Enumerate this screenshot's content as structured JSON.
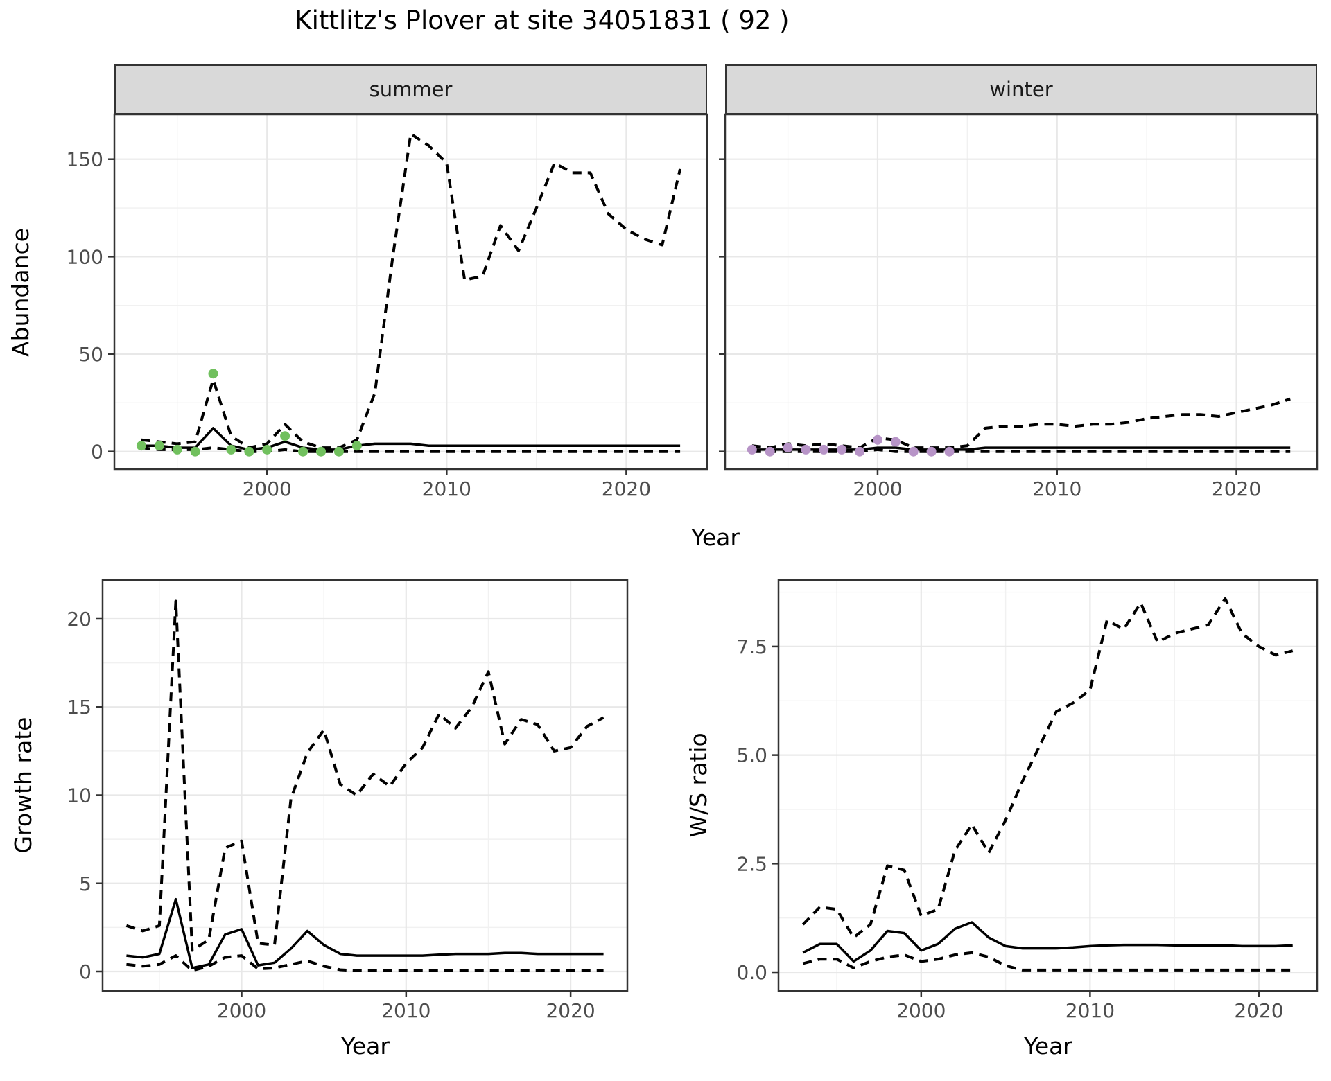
{
  "title": "Kittlitz's Plover at site 34051831 ( 92 )",
  "facets": [
    "summer",
    "winter"
  ],
  "axis_titles": {
    "abundance": "Abundance",
    "year": "Year",
    "growth_rate": "Growth rate",
    "ws_ratio": "W/S ratio"
  },
  "colors": {
    "background": "#ffffff",
    "strip_bg": "#d9d9d9",
    "panel_border": "#333333",
    "grid_major": "#e8e8e8",
    "grid_minor": "#f1f1f1",
    "tick_text": "#4d4d4d",
    "line": "#000000",
    "summer_points": "#71c05e",
    "winter_points": "#b794c7"
  },
  "chart_data": [
    {
      "id": "abundance_summer",
      "type": "line",
      "facet": "summer",
      "xlabel": "Year",
      "ylabel": "Abundance",
      "xlim": [
        1991.5,
        2024.5
      ],
      "ylim": [
        -9,
        173
      ],
      "xticks": [
        2000,
        2010,
        2020
      ],
      "xtick_labels": [
        "2000",
        "2010",
        "2020"
      ],
      "x_minor": [
        1995,
        2005,
        2015
      ],
      "yticks": [
        0,
        50,
        100,
        150
      ],
      "ytick_labels": [
        "0",
        "50",
        "100",
        "150"
      ],
      "y_minor": [
        25,
        75,
        125
      ],
      "grid": true,
      "legend": "none",
      "series": [
        {
          "name": "upper_95ci",
          "style": "dashed",
          "x": [
            1993,
            1994,
            1995,
            1996,
            1997,
            1998,
            1999,
            2000,
            2001,
            2002,
            2003,
            2004,
            2005,
            2006,
            2007,
            2008,
            2009,
            2010,
            2011,
            2012,
            2013,
            2014,
            2015,
            2016,
            2017,
            2018,
            2019,
            2020,
            2021,
            2022,
            2023
          ],
          "y": [
            6,
            5,
            4,
            5,
            37,
            8,
            2,
            4,
            14,
            5,
            2,
            2,
            6,
            30,
            100,
            163,
            157,
            148,
            88,
            90,
            116,
            103,
            125,
            148,
            143,
            143,
            122,
            114,
            109,
            106,
            145
          ]
        },
        {
          "name": "median",
          "style": "solid",
          "x": [
            1993,
            1994,
            1995,
            1996,
            1997,
            1998,
            1999,
            2000,
            2001,
            2002,
            2003,
            2004,
            2005,
            2006,
            2007,
            2008,
            2009,
            2010,
            2011,
            2012,
            2013,
            2014,
            2015,
            2016,
            2017,
            2018,
            2019,
            2020,
            2021,
            2022,
            2023
          ],
          "y": [
            3,
            3,
            2,
            2,
            12,
            3,
            1,
            2,
            5,
            2,
            1,
            1,
            3,
            4,
            4,
            4,
            3,
            3,
            3,
            3,
            3,
            3,
            3,
            3,
            3,
            3,
            3,
            3,
            3,
            3,
            3
          ]
        },
        {
          "name": "lower_95ci",
          "style": "dashed",
          "x": [
            1993,
            1994,
            1995,
            1996,
            1997,
            1998,
            1999,
            2000,
            2001,
            2002,
            2003,
            2004,
            2005,
            2006,
            2007,
            2008,
            2009,
            2010,
            2011,
            2012,
            2013,
            2014,
            2015,
            2016,
            2017,
            2018,
            2019,
            2020,
            2021,
            2022,
            2023
          ],
          "y": [
            2,
            1,
            1,
            1,
            2,
            1,
            0,
            0,
            1,
            0,
            0,
            0,
            0,
            0,
            0,
            0,
            0,
            0,
            0,
            0,
            0,
            0,
            0,
            0,
            0,
            0,
            0,
            0,
            0,
            0,
            0
          ]
        },
        {
          "name": "observed_counts",
          "style": "points",
          "color_key": "summer_points",
          "x": [
            1993,
            1994,
            1995,
            1996,
            1997,
            1998,
            1999,
            2000,
            2001,
            2002,
            2003,
            2004,
            2005
          ],
          "y": [
            3,
            3,
            1,
            0,
            40,
            1,
            0,
            1,
            8,
            0,
            0,
            0,
            3
          ]
        }
      ]
    },
    {
      "id": "abundance_winter",
      "type": "line",
      "facet": "winter",
      "xlabel": "Year",
      "ylabel": "Abundance",
      "xlim": [
        1991.5,
        2024.5
      ],
      "ylim": [
        -9,
        173
      ],
      "xticks": [
        2000,
        2010,
        2020
      ],
      "xtick_labels": [
        "2000",
        "2010",
        "2020"
      ],
      "x_minor": [
        1995,
        2005,
        2015
      ],
      "yticks": [
        0,
        50,
        100,
        150
      ],
      "ytick_labels": [
        "0",
        "50",
        "100",
        "150"
      ],
      "y_minor": [
        25,
        75,
        125
      ],
      "grid": true,
      "legend": "none",
      "series": [
        {
          "name": "upper_95ci",
          "style": "dashed",
          "x": [
            1993,
            1994,
            1995,
            1996,
            1997,
            1998,
            1999,
            2000,
            2001,
            2002,
            2003,
            2004,
            2005,
            2006,
            2007,
            2008,
            2009,
            2010,
            2011,
            2012,
            2013,
            2014,
            2015,
            2016,
            2017,
            2018,
            2019,
            2020,
            2021,
            2022,
            2023
          ],
          "y": [
            3,
            2,
            4,
            3,
            4,
            3,
            2,
            7,
            6,
            2,
            2,
            2,
            3,
            12,
            13,
            13,
            14,
            14,
            13,
            14,
            14,
            15,
            17,
            18,
            19,
            19,
            18,
            20,
            22,
            24,
            27
          ]
        },
        {
          "name": "median",
          "style": "solid",
          "x": [
            1993,
            1994,
            1995,
            1996,
            1997,
            1998,
            1999,
            2000,
            2001,
            2002,
            2003,
            2004,
            2005,
            2006,
            2007,
            2008,
            2009,
            2010,
            2011,
            2012,
            2013,
            2014,
            2015,
            2016,
            2017,
            2018,
            2019,
            2020,
            2021,
            2022,
            2023
          ],
          "y": [
            1,
            1,
            1,
            1,
            1,
            1,
            1,
            2,
            2,
            1,
            1,
            1,
            1,
            2,
            2,
            2,
            2,
            2,
            2,
            2,
            2,
            2,
            2,
            2,
            2,
            2,
            2,
            2,
            2,
            2,
            2
          ]
        },
        {
          "name": "lower_95ci",
          "style": "dashed",
          "x": [
            1993,
            1994,
            1995,
            1996,
            1997,
            1998,
            1999,
            2000,
            2001,
            2002,
            2003,
            2004,
            2005,
            2006,
            2007,
            2008,
            2009,
            2010,
            2011,
            2012,
            2013,
            2014,
            2015,
            2016,
            2017,
            2018,
            2019,
            2020,
            2021,
            2022,
            2023
          ],
          "y": [
            0,
            0,
            0,
            0,
            0,
            0,
            0,
            1,
            0,
            0,
            0,
            0,
            0,
            0,
            0,
            0,
            0,
            0,
            0,
            0,
            0,
            0,
            0,
            0,
            0,
            0,
            0,
            0,
            0,
            0,
            0
          ]
        },
        {
          "name": "observed_counts",
          "style": "points",
          "color_key": "winter_points",
          "x": [
            1993,
            1994,
            1995,
            1996,
            1997,
            1998,
            1999,
            2000,
            2001,
            2002,
            2003,
            2004
          ],
          "y": [
            1,
            0,
            2,
            1,
            1,
            1,
            0,
            6,
            5,
            0,
            0,
            0
          ]
        }
      ]
    },
    {
      "id": "growth_rate",
      "type": "line",
      "xlabel": "Year",
      "ylabel": "Growth rate",
      "xlim": [
        1991.55,
        2023.45
      ],
      "ylim": [
        -1.1,
        22.2
      ],
      "xticks": [
        2000,
        2010,
        2020
      ],
      "xtick_labels": [
        "2000",
        "2010",
        "2020"
      ],
      "x_minor": [
        1995,
        2005,
        2015
      ],
      "yticks": [
        0,
        5,
        10,
        15,
        20
      ],
      "ytick_labels": [
        "0",
        "5",
        "10",
        "15",
        "20"
      ],
      "y_minor": [
        2.5,
        7.5,
        12.5,
        17.5
      ],
      "grid": true,
      "legend": "none",
      "series": [
        {
          "name": "upper_95ci",
          "style": "dashed",
          "x": [
            1993,
            1994,
            1995,
            1996,
            1997,
            1998,
            1999,
            2000,
            2001,
            2002,
            2003,
            2004,
            2005,
            2006,
            2007,
            2008,
            2009,
            2010,
            2011,
            2012,
            2013,
            2014,
            2015,
            2016,
            2017,
            2018,
            2019,
            2020,
            2021,
            2022
          ],
          "y": [
            2.6,
            2.3,
            2.6,
            21,
            1.2,
            1.8,
            7.0,
            7.4,
            1.6,
            1.5,
            9.8,
            12.4,
            13.7,
            10.6,
            10.0,
            11.2,
            10.5,
            11.8,
            12.7,
            14.6,
            13.8,
            15.0,
            17.0,
            12.9,
            14.3,
            14.0,
            12.5,
            12.7,
            13.9,
            14.4
          ]
        },
        {
          "name": "median",
          "style": "solid",
          "x": [
            1993,
            1994,
            1995,
            1996,
            1997,
            1998,
            1999,
            2000,
            2001,
            2002,
            2003,
            2004,
            2005,
            2006,
            2007,
            2008,
            2009,
            2010,
            2011,
            2012,
            2013,
            2014,
            2015,
            2016,
            2017,
            2018,
            2019,
            2020,
            2021,
            2022
          ],
          "y": [
            0.9,
            0.8,
            1.0,
            4.1,
            0.2,
            0.4,
            2.1,
            2.4,
            0.35,
            0.5,
            1.3,
            2.3,
            1.5,
            1.0,
            0.9,
            0.9,
            0.9,
            0.9,
            0.9,
            0.95,
            1.0,
            1.0,
            1.0,
            1.05,
            1.05,
            1.0,
            1.0,
            1.0,
            1.0,
            1.0
          ]
        },
        {
          "name": "lower_95ci",
          "style": "dashed",
          "x": [
            1993,
            1994,
            1995,
            1996,
            1997,
            1998,
            1999,
            2000,
            2001,
            2002,
            2003,
            2004,
            2005,
            2006,
            2007,
            2008,
            2009,
            2010,
            2011,
            2012,
            2013,
            2014,
            2015,
            2016,
            2017,
            2018,
            2019,
            2020,
            2021,
            2022
          ],
          "y": [
            0.4,
            0.3,
            0.4,
            0.9,
            0.05,
            0.3,
            0.8,
            0.9,
            0.15,
            0.2,
            0.4,
            0.6,
            0.3,
            0.1,
            0.05,
            0.05,
            0.05,
            0.05,
            0.05,
            0.05,
            0.05,
            0.05,
            0.05,
            0.05,
            0.05,
            0.05,
            0.05,
            0.05,
            0.05,
            0.05
          ]
        }
      ]
    },
    {
      "id": "ws_ratio",
      "type": "line",
      "xlabel": "Year",
      "ylabel": "W/S ratio",
      "xlim": [
        1991.55,
        2023.45
      ],
      "ylim": [
        -0.43,
        9.03
      ],
      "xticks": [
        2000,
        2010,
        2020
      ],
      "xtick_labels": [
        "2000",
        "2010",
        "2020"
      ],
      "x_minor": [
        1995,
        2005,
        2015
      ],
      "yticks": [
        0,
        2.5,
        5,
        7.5
      ],
      "ytick_labels": [
        "0.0",
        "2.5",
        "5.0",
        "7.5"
      ],
      "y_minor": [
        1.25,
        3.75,
        6.25,
        8.75
      ],
      "grid": true,
      "legend": "none",
      "series": [
        {
          "name": "upper_95ci",
          "style": "dashed",
          "x": [
            1993,
            1994,
            1995,
            1996,
            1997,
            1998,
            1999,
            2000,
            2001,
            2002,
            2003,
            2004,
            2005,
            2006,
            2007,
            2008,
            2009,
            2010,
            2011,
            2012,
            2013,
            2014,
            2015,
            2016,
            2017,
            2018,
            2019,
            2020,
            2021,
            2022
          ],
          "y": [
            1.1,
            1.5,
            1.45,
            0.8,
            1.1,
            2.45,
            2.35,
            1.3,
            1.45,
            2.8,
            3.4,
            2.75,
            3.5,
            4.4,
            5.2,
            6.0,
            6.2,
            6.5,
            8.1,
            7.9,
            8.5,
            7.6,
            7.8,
            7.9,
            8.0,
            8.6,
            7.8,
            7.5,
            7.3,
            7.4
          ]
        },
        {
          "name": "median",
          "style": "solid",
          "x": [
            1993,
            1994,
            1995,
            1996,
            1997,
            1998,
            1999,
            2000,
            2001,
            2002,
            2003,
            2004,
            2005,
            2006,
            2007,
            2008,
            2009,
            2010,
            2011,
            2012,
            2013,
            2014,
            2015,
            2016,
            2017,
            2018,
            2019,
            2020,
            2021,
            2022
          ],
          "y": [
            0.45,
            0.65,
            0.65,
            0.25,
            0.5,
            0.95,
            0.9,
            0.5,
            0.65,
            1.0,
            1.15,
            0.8,
            0.6,
            0.55,
            0.55,
            0.55,
            0.57,
            0.6,
            0.62,
            0.63,
            0.63,
            0.63,
            0.62,
            0.62,
            0.62,
            0.62,
            0.6,
            0.6,
            0.6,
            0.62
          ]
        },
        {
          "name": "lower_95ci",
          "style": "dashed",
          "x": [
            1993,
            1994,
            1995,
            1996,
            1997,
            1998,
            1999,
            2000,
            2001,
            2002,
            2003,
            2004,
            2005,
            2006,
            2007,
            2008,
            2009,
            2010,
            2011,
            2012,
            2013,
            2014,
            2015,
            2016,
            2017,
            2018,
            2019,
            2020,
            2021,
            2022
          ],
          "y": [
            0.2,
            0.3,
            0.3,
            0.1,
            0.25,
            0.35,
            0.4,
            0.25,
            0.3,
            0.4,
            0.45,
            0.35,
            0.15,
            0.05,
            0.05,
            0.05,
            0.05,
            0.05,
            0.05,
            0.05,
            0.05,
            0.05,
            0.05,
            0.05,
            0.05,
            0.05,
            0.05,
            0.05,
            0.05,
            0.05
          ]
        }
      ]
    }
  ]
}
